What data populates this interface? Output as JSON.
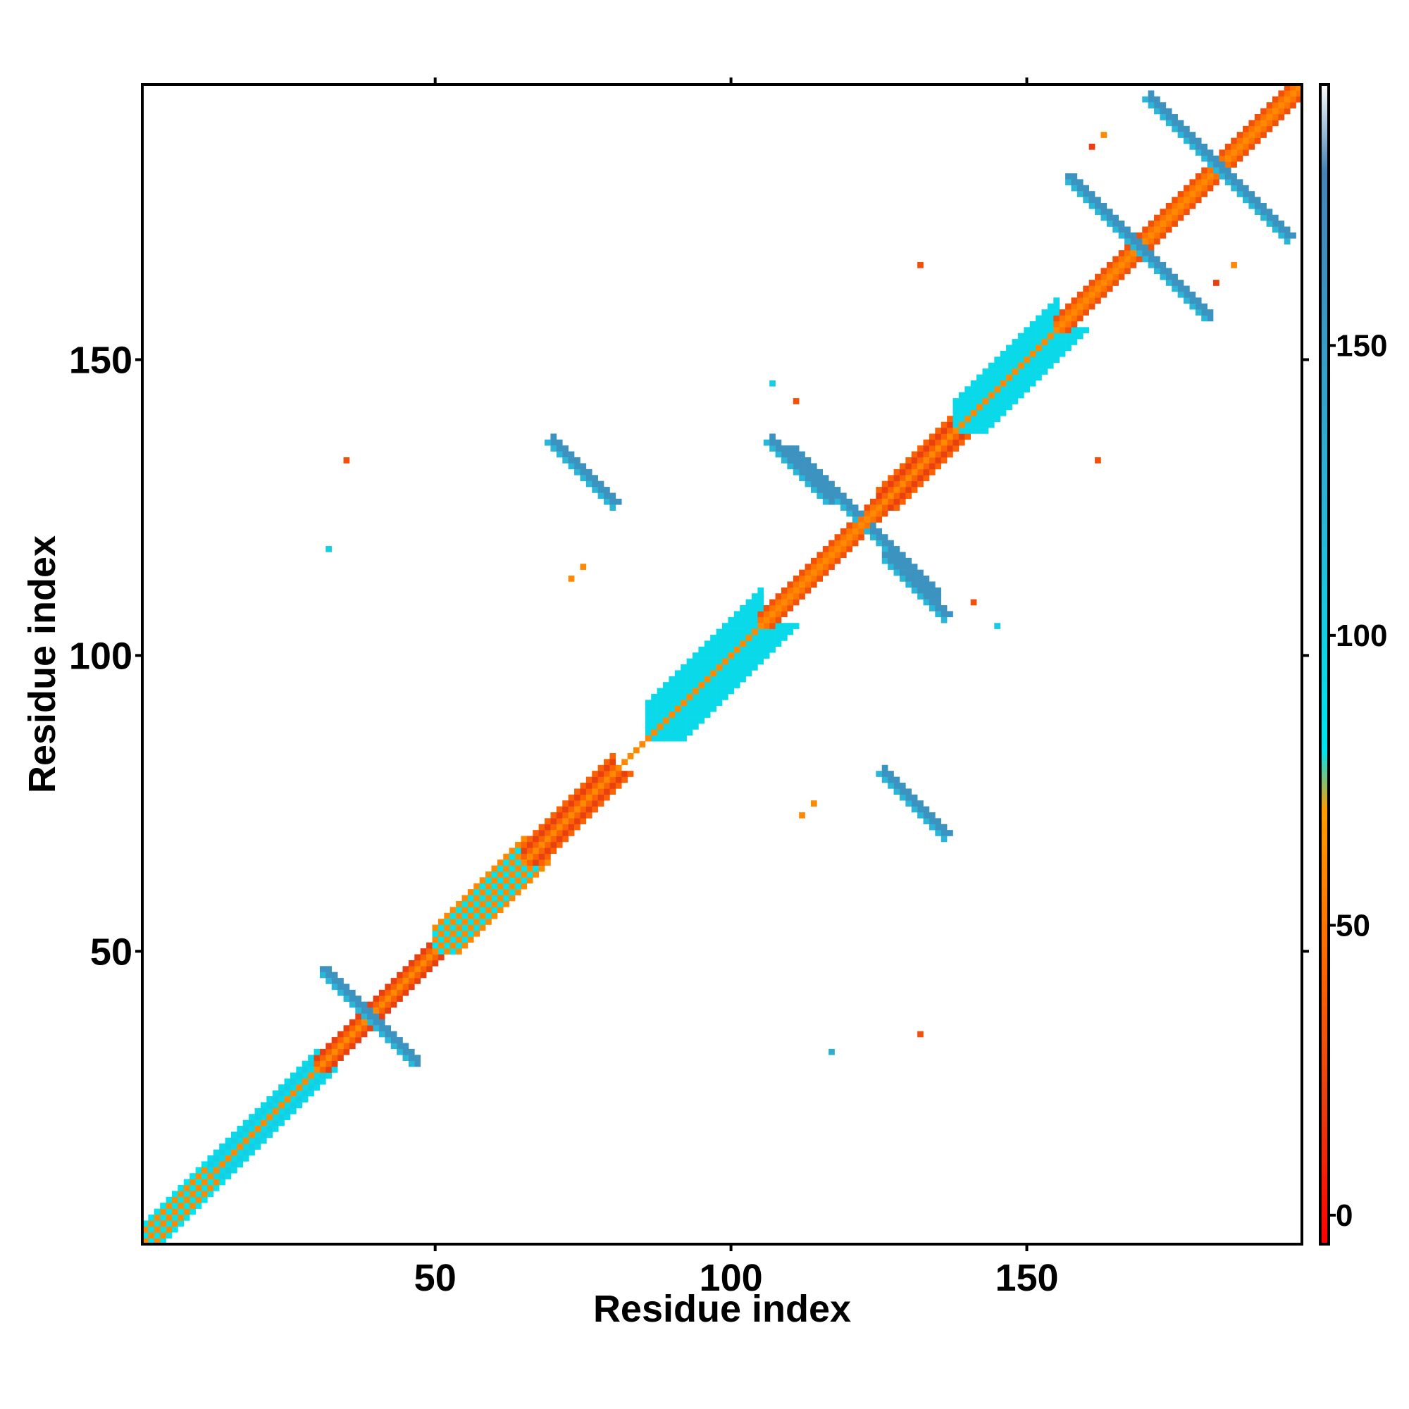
{
  "chart_data": {
    "type": "heatmap",
    "title": "",
    "xlabel": "Residue index",
    "ylabel": "Residue index",
    "xlim": [
      1,
      196
    ],
    "ylim": [
      1,
      196
    ],
    "x_ticks": [
      50,
      100,
      150
    ],
    "y_ticks": [
      50,
      100,
      150
    ],
    "colorbar": {
      "ticks": [
        0,
        50,
        100,
        150
      ],
      "range": [
        -5,
        195
      ],
      "stops": [
        {
          "value": -5,
          "color": "#ff0000"
        },
        {
          "value": 20,
          "color": "#e84010"
        },
        {
          "value": 45,
          "color": "#ff6a00"
        },
        {
          "value": 70,
          "color": "#ff9d00"
        },
        {
          "value": 80,
          "color": "#00e5ee"
        },
        {
          "value": 120,
          "color": "#29b6d8"
        },
        {
          "value": 180,
          "color": "#4682b4"
        },
        {
          "value": 195,
          "color": "#ffffff"
        }
      ]
    },
    "diagonal": {
      "from": 1,
      "to": 196
    },
    "diagonal_bands": [
      {
        "from": 1,
        "to": 12,
        "half_width": 3,
        "value": 60
      },
      {
        "from": 12,
        "to": 30,
        "half_width": 3,
        "value": 100
      },
      {
        "from": 30,
        "to": 50,
        "half_width": 2,
        "value": 20
      },
      {
        "from": 50,
        "to": 65,
        "half_width": 4,
        "value": 60
      },
      {
        "from": 65,
        "to": 80,
        "half_width": 3,
        "value": 20
      },
      {
        "from": 86,
        "to": 105,
        "half_width": 6,
        "value": 90
      },
      {
        "from": 105,
        "to": 125,
        "half_width": 2,
        "value": 30
      },
      {
        "from": 125,
        "to": 138,
        "half_width": 3,
        "value": 20
      },
      {
        "from": 138,
        "to": 155,
        "half_width": 5,
        "value": 90
      },
      {
        "from": 155,
        "to": 196,
        "half_width": 2,
        "value": 30
      }
    ],
    "antiparallel_sheets": [
      {
        "x": [
          31,
          46
        ],
        "y": [
          47,
          31
        ],
        "value": 160
      },
      {
        "x": [
          70,
          80
        ],
        "y": [
          136,
          126
        ],
        "value": 160
      },
      {
        "x": [
          110,
          121
        ],
        "y": [
          135,
          124
        ],
        "value": 160
      },
      {
        "x": [
          126,
          136
        ],
        "y": [
          117,
          107
        ],
        "value": 160
      },
      {
        "x": [
          126,
          136
        ],
        "y": [
          80,
          70
        ],
        "value": 160
      },
      {
        "x": [
          157,
          179
        ],
        "y": [
          181,
          159
        ],
        "value": 160
      },
      {
        "x": [
          171,
          194
        ],
        "y": [
          194,
          171
        ],
        "value": 160
      }
    ],
    "scattered_points": [
      {
        "x": 35,
        "y": 133,
        "value": 30
      },
      {
        "x": 32,
        "y": 118,
        "value": 100
      },
      {
        "x": 73,
        "y": 113,
        "value": 60
      },
      {
        "x": 75,
        "y": 115,
        "value": 60
      },
      {
        "x": 107,
        "y": 146,
        "value": 100
      },
      {
        "x": 111,
        "y": 143,
        "value": 30
      },
      {
        "x": 117,
        "y": 33,
        "value": 130
      },
      {
        "x": 132,
        "y": 36,
        "value": 30
      },
      {
        "x": 132,
        "y": 166,
        "value": 30
      },
      {
        "x": 141,
        "y": 109,
        "value": 30
      },
      {
        "x": 145,
        "y": 105,
        "value": 100
      },
      {
        "x": 161,
        "y": 186,
        "value": 20
      },
      {
        "x": 163,
        "y": 188,
        "value": 60
      },
      {
        "x": 162,
        "y": 133,
        "value": 30
      },
      {
        "x": 182,
        "y": 163,
        "value": 20
      },
      {
        "x": 185,
        "y": 166,
        "value": 60
      },
      {
        "x": 112,
        "y": 73,
        "value": 60
      },
      {
        "x": 114,
        "y": 75,
        "value": 60
      }
    ]
  }
}
